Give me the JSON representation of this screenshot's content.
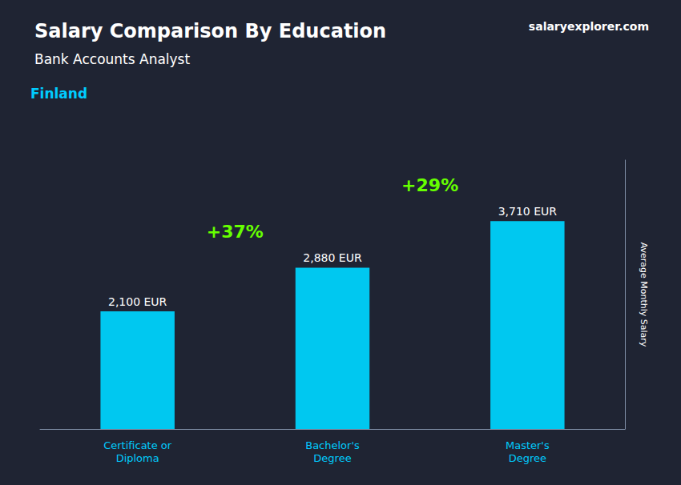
{
  "chart_data": {
    "type": "bar",
    "title": "Salary Comparison By Education",
    "subtitle": "Bank Accounts Analyst",
    "annotations": [
      "Finland",
      "salaryexplorer.com"
    ],
    "change_labels": [
      "+37%",
      "+29%"
    ],
    "ylabel": "Average Monthly Salary",
    "categories": [
      "Certificate or\nDiploma",
      "Bachelor's\nDegree",
      "Master's\nDegree"
    ],
    "values": [
      2100,
      2880,
      3710
    ],
    "value_labels": [
      "2,100 EUR",
      "2,880 EUR",
      "3,710 EUR"
    ],
    "data_labels": true,
    "color": "#00c8f0",
    "ylim": [
      0,
      4800
    ],
    "tick_labels": "x",
    "grid": false
  }
}
